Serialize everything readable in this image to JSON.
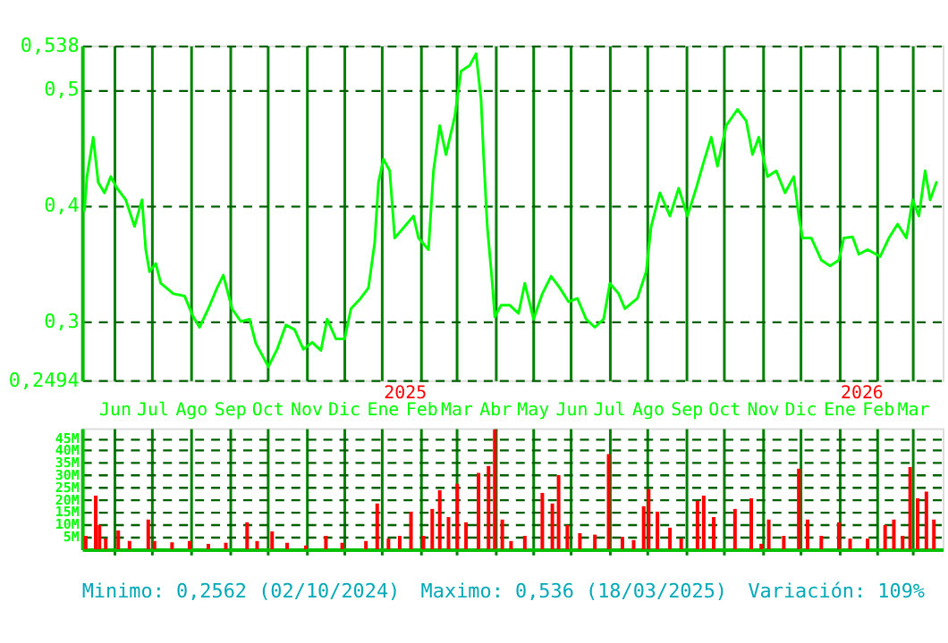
{
  "chart_data": [
    {
      "type": "line",
      "color": "#00ff00",
      "grid": true,
      "tick_labels": "x",
      "xlim": [
        "2024-05-06",
        "2026-03-25"
      ],
      "xticks": [
        {
          "value": "2024-06-01",
          "label": "Jun"
        },
        {
          "value": "2024-07-01",
          "label": "Jul"
        },
        {
          "value": "2024-08-01",
          "label": "Ago"
        },
        {
          "value": "2024-09-01",
          "label": "Sep"
        },
        {
          "value": "2024-10-01",
          "label": "Oct"
        },
        {
          "value": "2024-11-01",
          "label": "Nov"
        },
        {
          "value": "2024-12-01",
          "label": "Dic"
        },
        {
          "value": "2025-01-01",
          "label": "Ene"
        },
        {
          "value": "2025-02-01",
          "label": "Feb"
        },
        {
          "value": "2025-03-01",
          "label": "Mar"
        },
        {
          "value": "2025-04-01",
          "label": "Abr"
        },
        {
          "value": "2025-05-01",
          "label": "May"
        },
        {
          "value": "2025-06-01",
          "label": "Jun"
        },
        {
          "value": "2025-07-01",
          "label": "Jul"
        },
        {
          "value": "2025-08-01",
          "label": "Ago"
        },
        {
          "value": "2025-09-01",
          "label": "Sep"
        },
        {
          "value": "2025-10-01",
          "label": "Oct"
        },
        {
          "value": "2025-11-01",
          "label": "Nov"
        },
        {
          "value": "2025-12-01",
          "label": "Dic"
        },
        {
          "value": "2026-01-01",
          "label": "Ene"
        },
        {
          "value": "2026-02-01",
          "label": "Feb"
        },
        {
          "value": "2026-03-01",
          "label": "Mar"
        }
      ],
      "ylim": [
        0.2494,
        0.538
      ],
      "yticks": [
        {
          "value": 0.2494,
          "label": "0,2494"
        },
        {
          "value": 0.3,
          "label": "0,3"
        },
        {
          "value": 0.4,
          "label": "0,4"
        },
        {
          "value": 0.5,
          "label": "0,5"
        },
        {
          "value": 0.538,
          "label": "0,538"
        }
      ],
      "annotations": [
        "2025",
        "2026"
      ],
      "x": [
        "2024-05-08",
        "2024-05-10",
        "2024-05-15",
        "2024-05-19",
        "2024-05-24",
        "2024-05-29",
        "2024-06-03",
        "2024-06-10",
        "2024-06-17",
        "2024-06-23",
        "2024-06-26",
        "2024-06-29",
        "2024-07-04",
        "2024-07-08",
        "2024-07-18",
        "2024-07-27",
        "2024-08-03",
        "2024-08-08",
        "2024-08-15",
        "2024-08-22",
        "2024-08-27",
        "2024-09-03",
        "2024-09-10",
        "2024-09-17",
        "2024-09-22",
        "2024-09-27",
        "2024-10-02",
        "2024-10-09",
        "2024-10-16",
        "2024-10-23",
        "2024-10-30",
        "2024-11-06",
        "2024-11-13",
        "2024-11-18",
        "2024-11-25",
        "2024-12-02",
        "2024-12-07",
        "2024-12-14",
        "2024-12-21",
        "2024-12-26",
        "2024-12-29",
        "2025-01-02",
        "2025-01-07",
        "2025-01-11",
        "2025-01-19",
        "2025-01-26",
        "2025-01-30",
        "2025-02-07",
        "2025-02-11",
        "2025-02-16",
        "2025-02-21",
        "2025-02-28",
        "2025-03-05",
        "2025-03-12",
        "2025-03-17",
        "2025-03-21",
        "2025-03-23",
        "2025-03-26",
        "2025-03-30",
        "2025-04-01",
        "2025-04-06",
        "2025-04-13",
        "2025-04-20",
        "2025-04-25",
        "2025-05-02",
        "2025-05-09",
        "2025-05-16",
        "2025-05-23",
        "2025-05-30",
        "2025-06-06",
        "2025-06-13",
        "2025-06-20",
        "2025-06-27",
        "2025-07-02",
        "2025-07-09",
        "2025-07-14",
        "2025-07-24",
        "2025-07-31",
        "2025-08-04",
        "2025-08-11",
        "2025-08-19",
        "2025-08-26",
        "2025-09-02",
        "2025-09-09",
        "2025-09-14",
        "2025-09-21",
        "2025-09-26",
        "2025-10-03",
        "2025-10-12",
        "2025-10-19",
        "2025-10-24",
        "2025-10-29",
        "2025-11-05",
        "2025-11-12",
        "2025-11-19",
        "2025-11-26",
        "2025-11-30",
        "2025-12-03",
        "2025-12-10",
        "2025-12-18",
        "2025-12-25",
        "2026-01-01",
        "2026-01-05",
        "2026-01-12",
        "2026-01-17",
        "2026-01-24",
        "2026-02-03",
        "2026-02-10",
        "2026-02-17",
        "2026-02-24",
        "2026-03-01",
        "2026-03-06",
        "2026-03-11",
        "2026-03-15",
        "2026-03-20"
      ],
      "values": [
        0.396,
        0.425,
        0.459,
        0.42,
        0.411,
        0.425,
        0.415,
        0.405,
        0.382,
        0.405,
        0.362,
        0.343,
        0.35,
        0.333,
        0.324,
        0.322,
        0.304,
        0.295,
        0.311,
        0.329,
        0.34,
        0.311,
        0.3,
        0.302,
        0.281,
        0.271,
        0.261,
        0.276,
        0.297,
        0.293,
        0.276,
        0.282,
        0.275,
        0.302,
        0.285,
        0.285,
        0.311,
        0.319,
        0.329,
        0.368,
        0.42,
        0.44,
        0.43,
        0.372,
        0.382,
        0.391,
        0.372,
        0.362,
        0.43,
        0.469,
        0.444,
        0.477,
        0.516,
        0.521,
        0.531,
        0.492,
        0.444,
        0.382,
        0.333,
        0.304,
        0.314,
        0.314,
        0.307,
        0.333,
        0.302,
        0.324,
        0.339,
        0.329,
        0.317,
        0.32,
        0.302,
        0.295,
        0.302,
        0.333,
        0.324,
        0.311,
        0.32,
        0.343,
        0.382,
        0.411,
        0.391,
        0.415,
        0.391,
        0.415,
        0.434,
        0.459,
        0.434,
        0.469,
        0.483,
        0.473,
        0.444,
        0.459,
        0.425,
        0.43,
        0.411,
        0.425,
        0.391,
        0.372,
        0.372,
        0.353,
        0.348,
        0.353,
        0.372,
        0.373,
        0.358,
        0.362,
        0.356,
        0.372,
        0.384,
        0.372,
        0.405,
        0.391,
        0.43,
        0.405,
        0.42
      ]
    },
    {
      "type": "bar",
      "color": "#ff0000",
      "grid": true,
      "tick_labels": "y",
      "xlim": [
        "2024-05-06",
        "2026-03-25"
      ],
      "xticks": [
        {
          "value": "2024-06-01",
          "label": null
        },
        {
          "value": "2024-07-01",
          "label": null
        },
        {
          "value": "2024-08-01",
          "label": null
        },
        {
          "value": "2024-09-01",
          "label": null
        },
        {
          "value": "2024-10-01",
          "label": null
        },
        {
          "value": "2024-11-01",
          "label": null
        },
        {
          "value": "2024-12-01",
          "label": null
        },
        {
          "value": "2025-01-01",
          "label": null
        },
        {
          "value": "2025-02-01",
          "label": null
        },
        {
          "value": "2025-03-01",
          "label": null
        },
        {
          "value": "2025-04-01",
          "label": null
        },
        {
          "value": "2025-05-01",
          "label": null
        },
        {
          "value": "2025-06-01",
          "label": null
        },
        {
          "value": "2025-07-01",
          "label": null
        },
        {
          "value": "2025-08-01",
          "label": null
        },
        {
          "value": "2025-09-01",
          "label": null
        },
        {
          "value": "2025-10-01",
          "label": null
        },
        {
          "value": "2025-11-01",
          "label": null
        },
        {
          "value": "2025-12-01",
          "label": null
        },
        {
          "value": "2026-01-01",
          "label": null
        },
        {
          "value": "2026-02-01",
          "label": null
        },
        {
          "value": "2026-03-01",
          "label": null
        }
      ],
      "ylim": [
        0,
        49
      ],
      "yticks": [
        {
          "value": 5,
          "label": "5M"
        },
        {
          "value": 10,
          "label": "10M"
        },
        {
          "value": 15,
          "label": "15M"
        },
        {
          "value": 20,
          "label": "20M"
        },
        {
          "value": 25,
          "label": "25M"
        },
        {
          "value": 30,
          "label": "30M"
        },
        {
          "value": 35,
          "label": "35M"
        },
        {
          "value": 40,
          "label": "40M"
        },
        {
          "value": 45,
          "label": "45M"
        }
      ],
      "annotations": [
        "Minimo: 0,2562 (02/10/2024)",
        "Maximo: 0,536 (18/03/2025)",
        "Variación: 109%"
      ],
      "x": [
        "2024-05-09",
        "2024-05-17",
        "2024-05-20",
        "2024-05-25",
        "2024-06-04",
        "2024-06-13",
        "2024-06-28",
        "2024-07-03",
        "2024-07-17",
        "2024-07-31",
        "2024-08-15",
        "2024-08-29",
        "2024-09-15",
        "2024-09-23",
        "2024-10-05",
        "2024-10-17",
        "2024-11-01",
        "2024-11-17",
        "2024-11-30",
        "2024-12-19",
        "2024-12-28",
        "2025-01-06",
        "2025-01-15",
        "2025-01-24",
        "2025-02-03",
        "2025-02-10",
        "2025-02-16",
        "2025-02-23",
        "2025-03-02",
        "2025-03-09",
        "2025-03-19",
        "2025-03-27",
        "2025-04-01",
        "2025-04-07",
        "2025-04-14",
        "2025-04-25",
        "2025-05-09",
        "2025-05-17",
        "2025-05-22",
        "2025-05-29",
        "2025-06-08",
        "2025-06-20",
        "2025-07-01",
        "2025-07-12",
        "2025-07-21",
        "2025-07-29",
        "2025-08-02",
        "2025-08-09",
        "2025-08-19",
        "2025-08-28",
        "2025-09-10",
        "2025-09-15",
        "2025-09-23",
        "2025-10-10",
        "2025-10-23",
        "2025-10-31",
        "2025-11-06",
        "2025-11-18",
        "2025-11-30",
        "2025-12-07",
        "2025-12-18",
        "2026-01-01",
        "2026-01-10",
        "2026-01-24",
        "2026-02-07",
        "2026-02-14",
        "2026-02-21",
        "2026-02-27",
        "2026-03-05",
        "2026-03-12",
        "2026-03-18"
      ],
      "values": [
        5.4,
        21.7,
        9.8,
        4.3,
        7.6,
        3.3,
        12,
        3.3,
        2.8,
        3.3,
        2.2,
        2.6,
        10.9,
        3.3,
        7.2,
        2.6,
        1.5,
        5.4,
        2.6,
        3.3,
        18.5,
        4.3,
        5.4,
        15.2,
        5.4,
        16.3,
        23.9,
        13,
        26.5,
        10.9,
        30.9,
        33.7,
        48.5,
        12,
        3.3,
        5.4,
        22.8,
        18.5,
        30,
        9.8,
        6.5,
        5.9,
        38.5,
        5,
        3.7,
        17.4,
        24.3,
        15.2,
        8.7,
        4.3,
        19.6,
        21.7,
        13,
        16.3,
        20.6,
        2.2,
        12,
        5.4,
        32.6,
        12,
        5.4,
        10.9,
        4.3,
        4.3,
        9.8,
        12,
        5.4,
        33.3,
        20.6,
        23.3,
        12
      ]
    }
  ]
}
